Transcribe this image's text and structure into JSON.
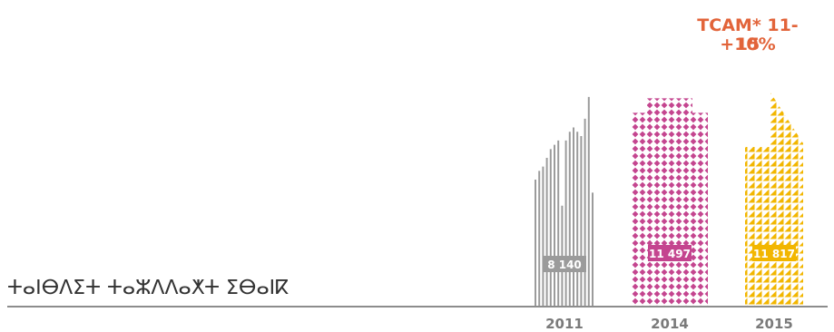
{
  "annotation": {
    "line1": "TCAM* 11-15",
    "line2": "+10%",
    "color": "#e2643a"
  },
  "category_label": "ⵜⴰⵏⴱⴷⵉⵜ ⵜⴰⵣⴷⴷⴰⵅⵜ ⵉⴱⴰⵏⴽ",
  "chart_data": {
    "type": "bar",
    "categories": [
      "2011",
      "2014",
      "2015"
    ],
    "values": [
      8140,
      11497,
      11817
    ],
    "value_labels": [
      "8 140",
      "11 497",
      "11 817"
    ],
    "colors": [
      "#9b9b9b",
      "#c4458f",
      "#f2b600"
    ],
    "title": "",
    "xlabel": "",
    "ylabel": "",
    "legend": "none",
    "grid": false
  }
}
